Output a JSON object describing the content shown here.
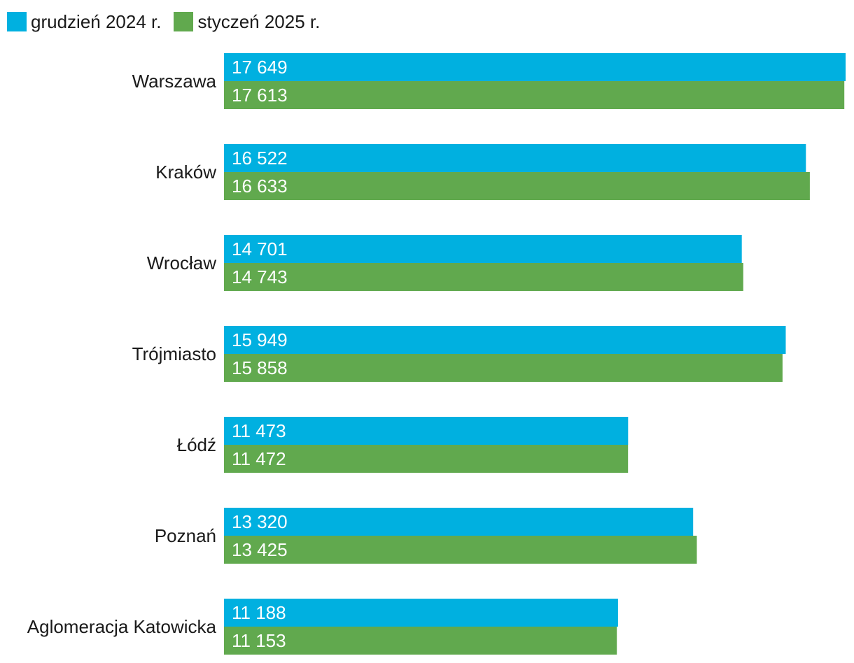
{
  "chart_data": {
    "type": "bar",
    "orientation": "horizontal",
    "categories": [
      "Warszawa",
      "Kraków",
      "Wrocław",
      "Trójmiasto",
      "Łódź",
      "Poznań",
      "Aglomeracja Katowicka"
    ],
    "series": [
      {
        "name": "grudzień 2024 r.",
        "color": "#00b0e0",
        "values": [
          17649,
          16522,
          14701,
          15949,
          11473,
          13320,
          11188
        ],
        "labels": [
          "17 649",
          "16 522",
          "14 701",
          "15 949",
          "11 473",
          "13 320",
          "11 188"
        ]
      },
      {
        "name": "styczeń 2025 r.",
        "color": "#61a94e",
        "values": [
          17613,
          16633,
          14743,
          15858,
          11472,
          13425,
          11153
        ],
        "labels": [
          "17 613",
          "16 633",
          "14 743",
          "15 858",
          "11 472",
          "13 425",
          "11 153"
        ]
      }
    ],
    "xlim": [
      0,
      17649
    ],
    "grid": false,
    "legend_position": "top-left"
  }
}
